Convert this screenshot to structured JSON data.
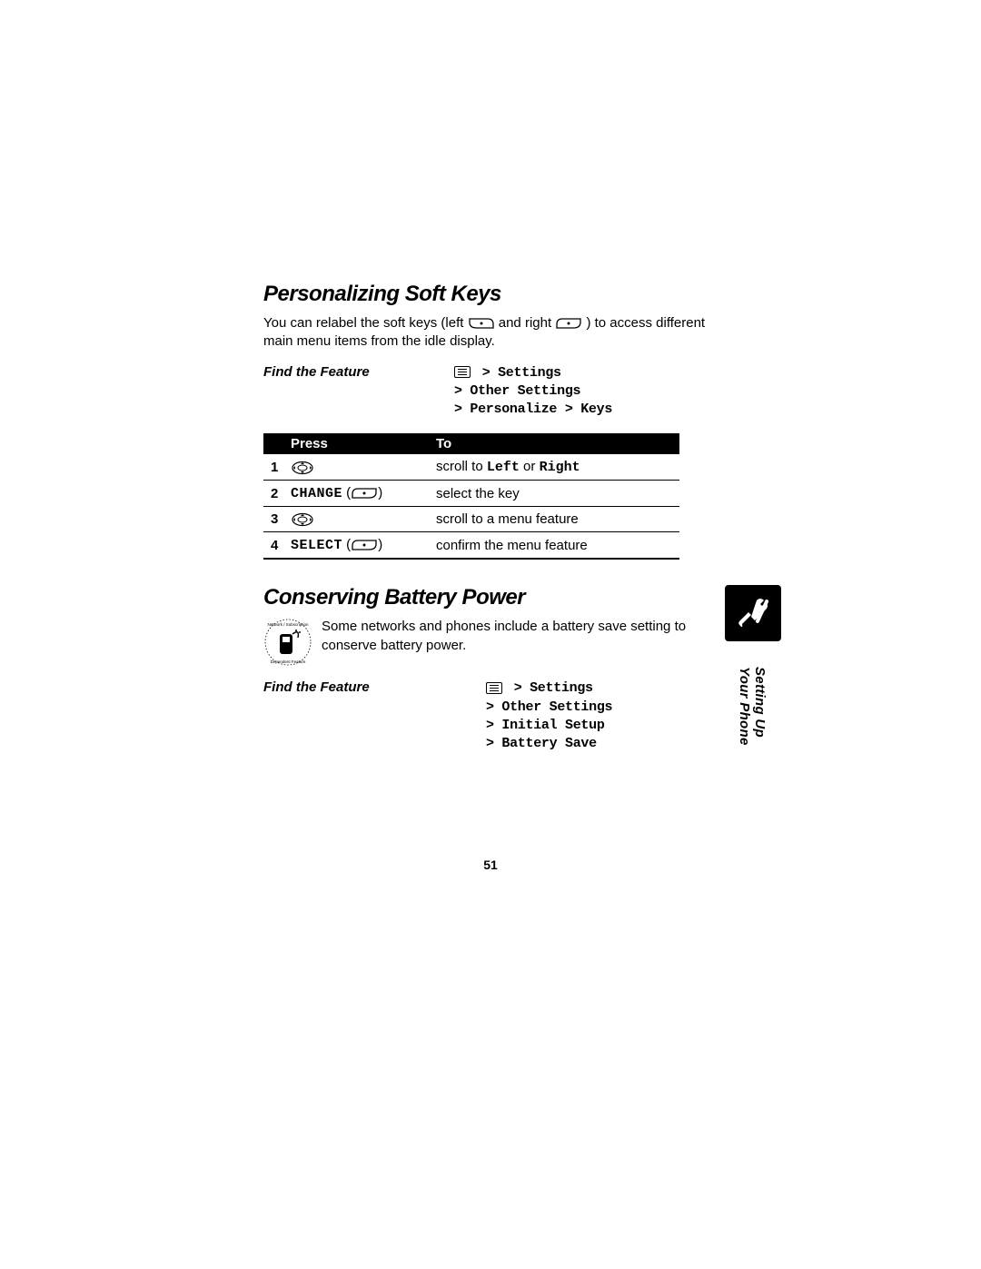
{
  "section1": {
    "heading": "Personalizing Soft Keys",
    "body_pre": "You can relabel the soft keys (left ",
    "body_mid": " and right ",
    "body_post": ") to access different main menu items from the idle display.",
    "feature_label": "Find the Feature",
    "nav_line1": " > Settings",
    "nav_line2": "> Other Settings",
    "nav_line3": "> Personalize > Keys",
    "table": {
      "header_press": "Press",
      "header_to": "To",
      "rows": [
        {
          "num": "1",
          "press_label": "",
          "press_has_nav": true,
          "press_has_softkey": false,
          "to_pre": "scroll to ",
          "to_mono1": "Left",
          "to_mid": " or ",
          "to_mono2": "Right",
          "to_post": ""
        },
        {
          "num": "2",
          "press_label": "CHANGE",
          "press_has_nav": false,
          "press_has_softkey": true,
          "to_pre": "select the key",
          "to_mono1": "",
          "to_mid": "",
          "to_mono2": "",
          "to_post": ""
        },
        {
          "num": "3",
          "press_label": "",
          "press_has_nav": true,
          "press_has_softkey": false,
          "to_pre": "scroll to a menu feature",
          "to_mono1": "",
          "to_mid": "",
          "to_mono2": "",
          "to_post": ""
        },
        {
          "num": "4",
          "press_label": "SELECT",
          "press_has_nav": false,
          "press_has_softkey": true,
          "to_pre": "confirm the menu feature",
          "to_mono1": "",
          "to_mid": "",
          "to_mono2": "",
          "to_post": ""
        }
      ]
    }
  },
  "section2": {
    "heading": "Conserving Battery Power",
    "body": "Some networks and phones include a battery save setting to conserve battery power.",
    "feature_label": "Find the Feature",
    "nav_line1": " > Settings",
    "nav_line2": "> Other Settings",
    "nav_line3": "> Initial Setup",
    "nav_line4": "> Battery Save"
  },
  "side_label": "Setting Up Your Phone",
  "page_number": "51",
  "colors": {
    "bg": "#ffffff",
    "text": "#000000",
    "table_header_bg": "#000000",
    "table_header_fg": "#ffffff"
  }
}
